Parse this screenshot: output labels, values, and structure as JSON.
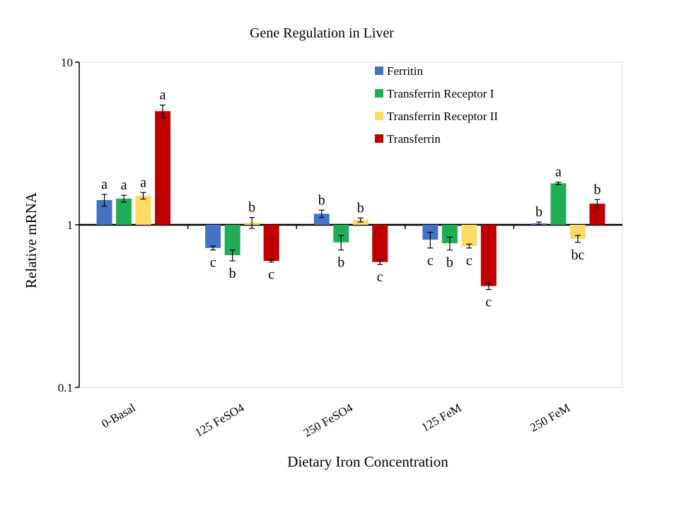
{
  "chart_data": {
    "type": "bar",
    "title": "Gene Regulation in Liver",
    "xlabel": "Dietary Iron Concentration",
    "ylabel": "Relative mRNA",
    "yscale": "log",
    "ylim": [
      0.1,
      10
    ],
    "baseline": 1,
    "yticks": [
      {
        "value": 10,
        "label": "10"
      },
      {
        "value": 1,
        "label": "1"
      },
      {
        "value": 0.1,
        "label": "0.1"
      }
    ],
    "categories": [
      "0-Basal",
      "125 FeSO4",
      "250 FeSO4",
      "125 FeM",
      "250 FeM"
    ],
    "series": [
      {
        "name": "Ferritin",
        "color": "#4472C4",
        "values": [
          1.42,
          0.72,
          1.17,
          0.81,
          1.02
        ],
        "errors": [
          0.12,
          0.02,
          0.06,
          0.09,
          0.02
        ],
        "letters": [
          "a",
          "c",
          "b",
          "c",
          "b"
        ]
      },
      {
        "name": "Transferrin Receptor I",
        "color": "#1FAD55",
        "values": [
          1.45,
          0.65,
          0.78,
          0.77,
          1.8
        ],
        "errors": [
          0.07,
          0.05,
          0.08,
          0.07,
          0.03
        ],
        "letters": [
          "a",
          "b",
          "b",
          "b",
          "a"
        ]
      },
      {
        "name": "Transferrin Receptor II",
        "color": "#FFD966",
        "values": [
          1.51,
          1.03,
          1.07,
          0.74,
          0.82
        ],
        "errors": [
          0.07,
          0.08,
          0.03,
          0.02,
          0.04
        ],
        "letters": [
          "a",
          "b",
          "b",
          "c",
          "bc"
        ]
      },
      {
        "name": "Transferrin",
        "color": "#C00000",
        "values": [
          5.0,
          0.6,
          0.59,
          0.42,
          1.35
        ],
        "errors": [
          0.45,
          0.01,
          0.02,
          0.02,
          0.08
        ],
        "letters": [
          "a",
          "c",
          "c",
          "c",
          "b"
        ]
      }
    ],
    "legend_position": "top-right",
    "grid": false
  }
}
